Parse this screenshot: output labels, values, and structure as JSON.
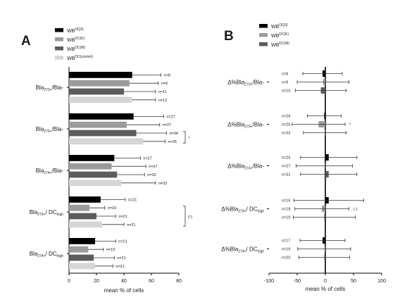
{
  "colors": {
    "WB(OQ3)": "#000000",
    "WB(DC(K))": "#9b9b9b",
    "WB(DC(M))": "#5c5c5c",
    "WB(DC(control))": "#d6d6d6"
  },
  "chart_data": [
    {
      "panel": "A",
      "type": "bar",
      "orientation": "horizontal",
      "xlabel": "mean % of cells",
      "xlim": [
        0,
        80
      ],
      "xticks": [
        0,
        20,
        40,
        60,
        80
      ],
      "legend": [
        {
          "key": "WB(OQ3)",
          "base": "WB",
          "sup": "OQ3)"
        },
        {
          "key": "WB(DC(K))",
          "base": "WB",
          "sup": "DC(K)"
        },
        {
          "key": "WB(DC(M))",
          "base": "WB",
          "sup": "DC(M)"
        },
        {
          "key": "WB(DC(control))",
          "base": "WB",
          "sup": "DC(control)"
        }
      ],
      "groups": [
        {
          "label": "Bla273+/Bla-",
          "parts": [
            [
              "Bla",
              ""
            ],
            [
              "273+",
              "sub"
            ],
            [
              "/Bla-",
              ""
            ]
          ],
          "bars": [
            {
              "series": "WB(OQ3)",
              "mean": 46,
              "error": 21,
              "n": "n=8"
            },
            {
              "series": "WB(DC(K))",
              "mean": 44,
              "error": 21,
              "n": "n=9"
            },
            {
              "series": "WB(DC(M))",
              "mean": 40,
              "error": 23,
              "n": "n=11"
            },
            {
              "series": "WB(DC(control))",
              "mean": 46,
              "error": 17,
              "n": "n=12"
            }
          ]
        },
        {
          "label": "Bla279+/Bla-",
          "parts": [
            [
              "Bla",
              ""
            ],
            [
              "279+",
              "sub"
            ],
            [
              "/Bla-",
              ""
            ]
          ],
          "bars": [
            {
              "series": "WB(OQ3)",
              "mean": 47,
              "error": 22,
              "n": "n=27"
            },
            {
              "series": "WB(DC(K))",
              "mean": 42,
              "error": 24,
              "n": "n=27"
            },
            {
              "series": "WB(DC(M))",
              "mean": 49,
              "error": 22,
              "n": "n=34"
            },
            {
              "series": "WB(DC(control))",
              "mean": 54,
              "error": 16,
              "n": "n=35"
            }
          ],
          "annotation": "*"
        },
        {
          "label": "Bla274+/Bla-",
          "parts": [
            [
              "Bla",
              ""
            ],
            [
              "274+",
              "sub"
            ],
            [
              "/Bla-",
              ""
            ]
          ],
          "bars": [
            {
              "series": "WB(OQ3)",
              "mean": 33,
              "error": 19,
              "n": "n=27"
            },
            {
              "series": "WB(DC(K))",
              "mean": 31,
              "error": 25,
              "n": "n=27"
            },
            {
              "series": "WB(DC(M))",
              "mean": 35,
              "error": 20,
              "n": "n=32"
            },
            {
              "series": "WB(DC(control))",
              "mean": 38,
              "error": 25,
              "n": "n=33"
            }
          ]
        },
        {
          "label": "Bla279+/ DChigh",
          "parts": [
            [
              "Bla",
              ""
            ],
            [
              "279+",
              "sub"
            ],
            [
              "/ DC",
              ""
            ],
            [
              "high",
              "sub"
            ]
          ],
          "bars": [
            {
              "series": "WB(OQ3)",
              "mean": 23,
              "error": 18,
              "n": "n=21"
            },
            {
              "series": "WB(DC(K))",
              "mean": 15,
              "error": 11,
              "n": "n=19"
            },
            {
              "series": "WB(DC(M))",
              "mean": 20,
              "error": 14,
              "n": "n=21"
            },
            {
              "series": "WB(DC(control))",
              "mean": 24,
              "error": 16,
              "n": "n=21"
            }
          ],
          "annotation": "(*)"
        },
        {
          "label": "Bla274+/ DChigh",
          "parts": [
            [
              "Bla",
              ""
            ],
            [
              "274+",
              "sub"
            ],
            [
              "/ DC",
              ""
            ],
            [
              "high",
              "sub"
            ]
          ],
          "bars": [
            {
              "series": "WB(OQ3)",
              "mean": 19,
              "error": 15,
              "n": "n=21"
            },
            {
              "series": "WB(DC(K))",
              "mean": 14,
              "error": 11,
              "n": "n=19"
            },
            {
              "series": "WB(DC(M))",
              "mean": 18,
              "error": 15,
              "n": "n=21"
            },
            {
              "series": "WB(DC(control))",
              "mean": 19,
              "error": 13,
              "n": "n=21"
            }
          ]
        }
      ]
    },
    {
      "panel": "B",
      "type": "bar",
      "orientation": "horizontal",
      "xlabel": "mean % of cells",
      "xlim": [
        -100,
        100
      ],
      "xticks": [
        -100,
        -50,
        0,
        50,
        100
      ],
      "legend": [
        {
          "key": "WB(OQ3)",
          "base": "WB",
          "sup": "OQ3)"
        },
        {
          "key": "WB(DC(K))",
          "base": "WB",
          "sup": "DC(K)"
        },
        {
          "key": "WB(DC(M))",
          "base": "WB",
          "sup": "DC(M)"
        }
      ],
      "groups": [
        {
          "label": "Δ%Bla273+/Bla-",
          "parts": [
            [
              "Δ%Bla",
              ""
            ],
            [
              "273+",
              "sub"
            ],
            [
              "/Bla-",
              ""
            ]
          ],
          "bars": [
            {
              "series": "WB(OQ3)",
              "mean": -5,
              "error": 35,
              "n": "n=8"
            },
            {
              "series": "WB(DC(K))",
              "mean": -4,
              "error": 46,
              "n": "n=9"
            },
            {
              "series": "WB(DC(M))",
              "mean": -8,
              "error": 45,
              "n": "n=10"
            }
          ]
        },
        {
          "label": "Δ%Bla279+/Bla-",
          "parts": [
            [
              "Δ%Bla",
              ""
            ],
            [
              "279+",
              "sub"
            ],
            [
              "/Bla-",
              ""
            ]
          ],
          "bars": [
            {
              "series": "WB(OQ3)",
              "mean": -2,
              "error": 30,
              "n": "n=26"
            },
            {
              "series": "WB(DC(K))",
              "mean": -12,
              "error": 47,
              "n": "n=26"
            },
            {
              "series": "WB(DC(M))",
              "mean": -1,
              "error": 38,
              "n": "n=33"
            }
          ],
          "annotation": "*"
        },
        {
          "label": "Δ%Bla274+/Bla-",
          "parts": [
            [
              "Δ%Bla",
              ""
            ],
            [
              "274+",
              "sub"
            ],
            [
              "/Bla-",
              ""
            ]
          ],
          "bars": [
            {
              "series": "WB(OQ3)",
              "mean": 6,
              "error": 50,
              "n": "n=25"
            },
            {
              "series": "WB(DC(K))",
              "mean": -2,
              "error": 50,
              "n": "n=27"
            },
            {
              "series": "WB(DC(M))",
              "mean": 6,
              "error": 50,
              "n": "n=31"
            }
          ]
        },
        {
          "label": "Δ%Bla279+/ DChigh",
          "parts": [
            [
              "Δ%Bla",
              ""
            ],
            [
              "279+",
              "sub"
            ],
            [
              "/ DC",
              ""
            ],
            [
              "high",
              "sub"
            ]
          ],
          "bars": [
            {
              "series": "WB(OQ3)",
              "mean": 6,
              "error": 62,
              "n": "n=16"
            },
            {
              "series": "WB(DC(K))",
              "mean": -6,
              "error": 48,
              "n": "n=18"
            },
            {
              "series": "WB(DC(M))",
              "mean": -2,
              "error": 55,
              "n": "n=19"
            }
          ],
          "annotation": "(-)"
        },
        {
          "label": "Δ%Bla274+/ DChigh",
          "parts": [
            [
              "Δ%Bla",
              ""
            ],
            [
              "274+",
              "sub"
            ],
            [
              "/ DC",
              ""
            ],
            [
              "high",
              "sub"
            ]
          ],
          "bars": [
            {
              "series": "WB(OQ3)",
              "mean": -5,
              "error": 40,
              "n": "n=17"
            },
            {
              "series": "WB(DC(K))",
              "mean": -2,
              "error": 47,
              "n": "n=19"
            },
            {
              "series": "WB(DC(M))",
              "mean": -2,
              "error": 45,
              "n": "n=20"
            }
          ]
        }
      ]
    }
  ]
}
